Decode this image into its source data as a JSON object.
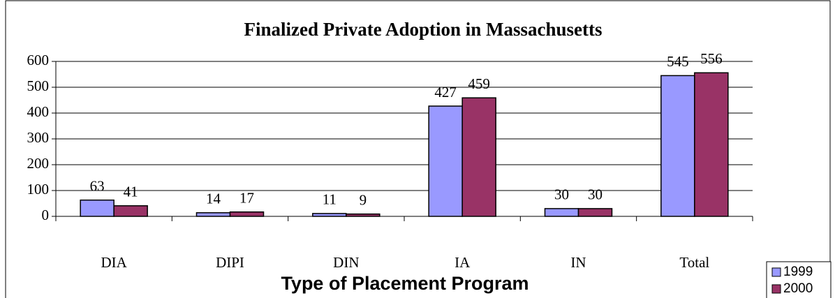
{
  "chart_data": {
    "type": "bar",
    "title": "Finalized Private Adoption in Massachusetts",
    "x_label": "Type of Placement Program",
    "categories": [
      "DIA",
      "DIPI",
      "DIN",
      "IA",
      "IN",
      "Total"
    ],
    "series": [
      {
        "name": "1999",
        "color": "#9999ff",
        "values": [
          63,
          14,
          11,
          427,
          30,
          545
        ]
      },
      {
        "name": "2000",
        "color": "#993366",
        "values": [
          41,
          17,
          9,
          459,
          30,
          556
        ]
      }
    ],
    "ylim": [
      0,
      600
    ],
    "yticks": [
      0,
      100,
      200,
      300,
      400,
      500,
      600
    ],
    "grid": true,
    "legend": "bottom-right"
  }
}
